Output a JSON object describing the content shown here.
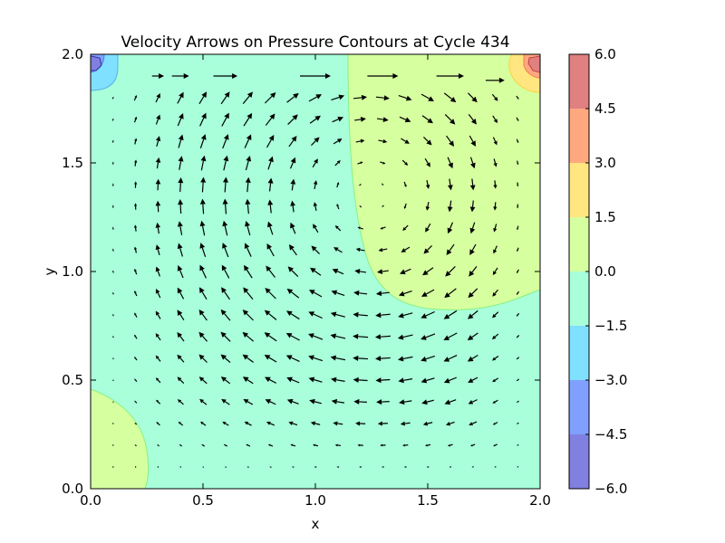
{
  "chart_data": {
    "type": "contour",
    "title": "Velocity Arrows on Pressure Contours at Cycle 434",
    "xlabel": "x",
    "ylabel": "y",
    "xlim": [
      0.0,
      2.0
    ],
    "ylim": [
      0.0,
      2.0
    ],
    "x_ticks": [
      "0.0",
      "0.5",
      "1.0",
      "1.5",
      "2.0"
    ],
    "y_ticks": [
      "0.0",
      "0.5",
      "1.0",
      "1.5",
      "2.0"
    ],
    "colorbar": {
      "levels": [
        -6.0,
        -4.5,
        -3.0,
        -1.5,
        0.0,
        1.5,
        3.0,
        4.5,
        6.0
      ],
      "tick_labels": [
        "−6.0",
        "−4.5",
        "−3.0",
        "−1.5",
        "0.0",
        "1.5",
        "3.0",
        "4.5",
        "6.0"
      ],
      "colors": [
        "#8080e0",
        "#80a0ff",
        "#80e0ff",
        "#a8ffda",
        "#d6ffa0",
        "#ffe680",
        "#ffa880",
        "#e08080"
      ]
    },
    "pressure_regions": [
      {
        "name": "background",
        "range": [
          -1.5,
          0.0
        ],
        "color": "#a8ffda"
      },
      {
        "name": "right-upper-positive",
        "range": [
          0.0,
          1.5
        ],
        "color": "#d6ffa0"
      },
      {
        "name": "lower-left-positive",
        "range": [
          0.0,
          1.5
        ],
        "color": "#d6ffa0"
      },
      {
        "name": "top-left-negative-1",
        "range": [
          -3.0,
          -1.5
        ],
        "color": "#80e0ff"
      },
      {
        "name": "top-left-negative-2",
        "range": [
          -4.5,
          -3.0
        ],
        "color": "#80a0ff"
      },
      {
        "name": "top-left-negative-3",
        "range": [
          -6.0,
          -4.5
        ],
        "color": "#8080e0"
      },
      {
        "name": "top-right-positive-1",
        "range": [
          1.5,
          3.0
        ],
        "color": "#ffe680"
      },
      {
        "name": "top-right-positive-2",
        "range": [
          3.0,
          4.5
        ],
        "color": "#ffa880"
      },
      {
        "name": "top-right-positive-3",
        "range": [
          4.5,
          6.0
        ],
        "color": "#e08080"
      }
    ],
    "quiver": {
      "grid_x_start": 0.1,
      "grid_x_step": 0.1,
      "grid_y_start": 0.1,
      "grid_y_step": 0.1,
      "count": 19,
      "vortex_center": [
        1.25,
        1.35
      ],
      "lid_row": [
        [
          0.3,
          1.9,
          0.35
        ],
        [
          0.4,
          1.9,
          0.5
        ],
        [
          0.6,
          1.9,
          0.7
        ],
        [
          1.0,
          1.9,
          0.9
        ],
        [
          1.3,
          1.9,
          0.9
        ],
        [
          1.6,
          1.9,
          0.8
        ],
        [
          1.8,
          1.88,
          0.55
        ]
      ]
    },
    "grid": false,
    "legend": "none"
  }
}
